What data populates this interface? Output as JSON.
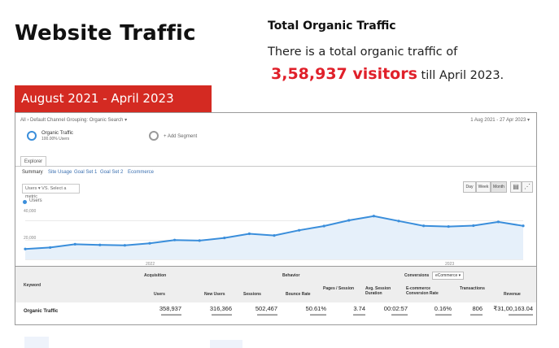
{
  "header": {
    "title": "Website Traffic",
    "stat_heading": "Total Organic Traffic",
    "stat_line1": "There is a total organic traffic of",
    "stat_value": "3,58,937 visitors",
    "stat_suffix": " till April 2023."
  },
  "banner": {
    "label": "August 2021 - April 2023"
  },
  "report": {
    "breadcrumb": "All › Default Channel Grouping: Organic Search ▾",
    "date_range": "1 Aug 2021 - 27 Apr 2023 ▾",
    "segment_primary": "Organic Traffic",
    "segment_primary_sub": "100.00% Users",
    "segment_add": "+ Add Segment",
    "explorer_tab": "Explorer",
    "subtabs": [
      "Summary",
      "Site Usage",
      "Goal Set 1",
      "Goal Set 2",
      "Ecommerce"
    ],
    "metric_select": "Users ▾  VS.  Select a metric",
    "view_buttons": [
      "Day",
      "Week",
      "Month"
    ],
    "legend": "Users",
    "y_ticks": [
      "40,000",
      "20,000"
    ],
    "x_ticks": [
      "2022",
      "2023"
    ]
  },
  "chart_data": {
    "type": "area",
    "series": [
      {
        "name": "Users",
        "values": [
          10800,
          12300,
          15700,
          15000,
          14600,
          16700,
          20100,
          19500,
          22300,
          26600,
          24800,
          30200,
          34600,
          40500,
          44900,
          39800,
          34800,
          34100,
          35000,
          38900,
          34800
        ]
      }
    ],
    "yticks": [
      20000,
      40000
    ],
    "ylim": [
      0,
      54000
    ],
    "grid": true,
    "color": "#3a8edb",
    "fill": "#e6f0fa"
  },
  "table": {
    "headers": {
      "keyword": "Keyword",
      "acquisition": "Acquisition",
      "behavior": "Behavior",
      "conversions": "Conversions",
      "conversions_select": "eCommerce ▾",
      "users": "Users",
      "new_users": "New Users",
      "sessions": "Sessions",
      "bounce_rate": "Bounce Rate",
      "pages_session": "Pages / Session",
      "avg_session": "Avg. Session Duration",
      "ecom_rate": "E-commerce Conversion Rate",
      "transactions": "Transactions",
      "revenue": "Revenue"
    },
    "row": {
      "label": "Organic Traffic",
      "users": "358,937",
      "new_users": "316,366",
      "sessions": "502,467",
      "bounce_rate": "50.61%",
      "pages_session": "3.74",
      "avg_session": "00:02:57",
      "ecom_rate": "0.16%",
      "transactions": "806",
      "revenue": "₹31,00,163.04"
    }
  }
}
